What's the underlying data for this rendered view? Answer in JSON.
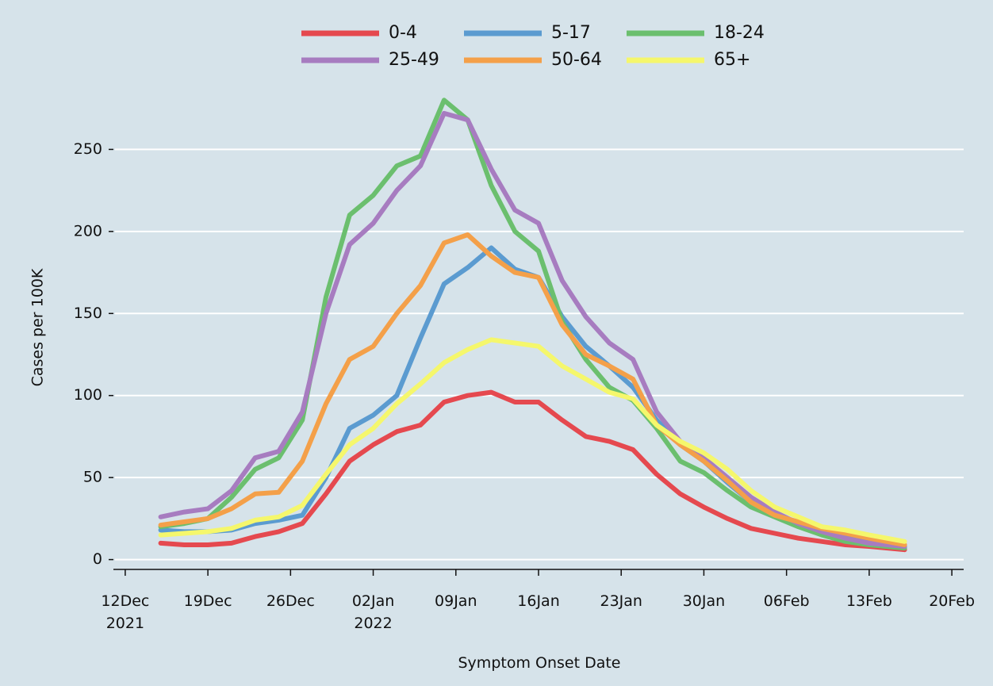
{
  "chart_data": {
    "type": "line",
    "x_label": "Symptom Onset Date",
    "y_label": "Cases per 100K",
    "x": [
      "2021-12-15",
      "2021-12-17",
      "2021-12-19",
      "2021-12-21",
      "2021-12-23",
      "2021-12-25",
      "2021-12-27",
      "2021-12-29",
      "2021-12-31",
      "2022-01-02",
      "2022-01-04",
      "2022-01-06",
      "2022-01-08",
      "2022-01-10",
      "2022-01-12",
      "2022-01-14",
      "2022-01-16",
      "2022-01-18",
      "2022-01-20",
      "2022-01-22",
      "2022-01-24",
      "2022-01-26",
      "2022-01-28",
      "2022-01-30",
      "2022-02-01",
      "2022-02-03",
      "2022-02-05",
      "2022-02-07",
      "2022-02-09",
      "2022-02-11",
      "2022-02-13",
      "2022-02-16"
    ],
    "series": [
      {
        "name": "0-4",
        "color": "#e5494f",
        "values": [
          10,
          9,
          9,
          10,
          14,
          17,
          22,
          40,
          60,
          70,
          78,
          82,
          96,
          100,
          102,
          96,
          96,
          85,
          75,
          72,
          67,
          52,
          40,
          32,
          25,
          19,
          16,
          13,
          11,
          9,
          8,
          6
        ]
      },
      {
        "name": "5-17",
        "color": "#5b9bd0",
        "values": [
          18,
          17,
          17,
          18,
          22,
          24,
          27,
          50,
          80,
          88,
          100,
          135,
          168,
          178,
          190,
          177,
          172,
          148,
          130,
          118,
          105,
          85,
          70,
          60,
          47,
          35,
          28,
          22,
          17,
          14,
          11,
          8
        ]
      },
      {
        "name": "18-24",
        "color": "#6bbf6e",
        "values": [
          20,
          22,
          25,
          38,
          55,
          62,
          85,
          160,
          210,
          222,
          240,
          246,
          280,
          268,
          228,
          200,
          188,
          145,
          122,
          105,
          97,
          80,
          60,
          53,
          42,
          32,
          26,
          20,
          15,
          11,
          9,
          7
        ]
      },
      {
        "name": "25-49",
        "color": "#a77cc0",
        "values": [
          26,
          29,
          31,
          42,
          62,
          66,
          90,
          150,
          192,
          205,
          225,
          240,
          272,
          268,
          238,
          213,
          205,
          170,
          148,
          132,
          122,
          90,
          72,
          62,
          50,
          38,
          29,
          22,
          17,
          13,
          10,
          8
        ]
      },
      {
        "name": "50-64",
        "color": "#f4a049",
        "values": [
          21,
          23,
          25,
          31,
          40,
          41,
          60,
          95,
          122,
          130,
          150,
          167,
          193,
          198,
          185,
          175,
          172,
          143,
          125,
          118,
          110,
          82,
          70,
          60,
          48,
          35,
          27,
          23,
          19,
          16,
          13,
          9
        ]
      },
      {
        "name": "65+",
        "color": "#f5f76c",
        "values": [
          15,
          16,
          17,
          19,
          24,
          26,
          33,
          52,
          70,
          80,
          95,
          107,
          120,
          128,
          134,
          132,
          130,
          118,
          110,
          102,
          98,
          82,
          72,
          65,
          55,
          42,
          32,
          26,
          20,
          18,
          15,
          11
        ]
      }
    ],
    "xlim": [
      "2021-12-11",
      "2022-02-21"
    ],
    "xticks": [
      {
        "value": "2021-12-12",
        "label": "12Dec\n2021"
      },
      {
        "value": "2021-12-19",
        "label": "19Dec"
      },
      {
        "value": "2021-12-26",
        "label": "26Dec"
      },
      {
        "value": "2022-01-02",
        "label": "02Jan\n2022"
      },
      {
        "value": "2022-01-09",
        "label": "09Jan"
      },
      {
        "value": "2022-01-16",
        "label": "16Jan"
      },
      {
        "value": "2022-01-23",
        "label": "23Jan"
      },
      {
        "value": "2022-01-30",
        "label": "30Jan"
      },
      {
        "value": "2022-02-06",
        "label": "06Feb"
      },
      {
        "value": "2022-02-13",
        "label": "13Feb"
      },
      {
        "value": "2022-02-20",
        "label": "20Feb"
      }
    ],
    "ylim": [
      -6,
      285
    ],
    "yticks": [
      0,
      50,
      100,
      150,
      200,
      250
    ],
    "grid": true,
    "legend": "top"
  }
}
